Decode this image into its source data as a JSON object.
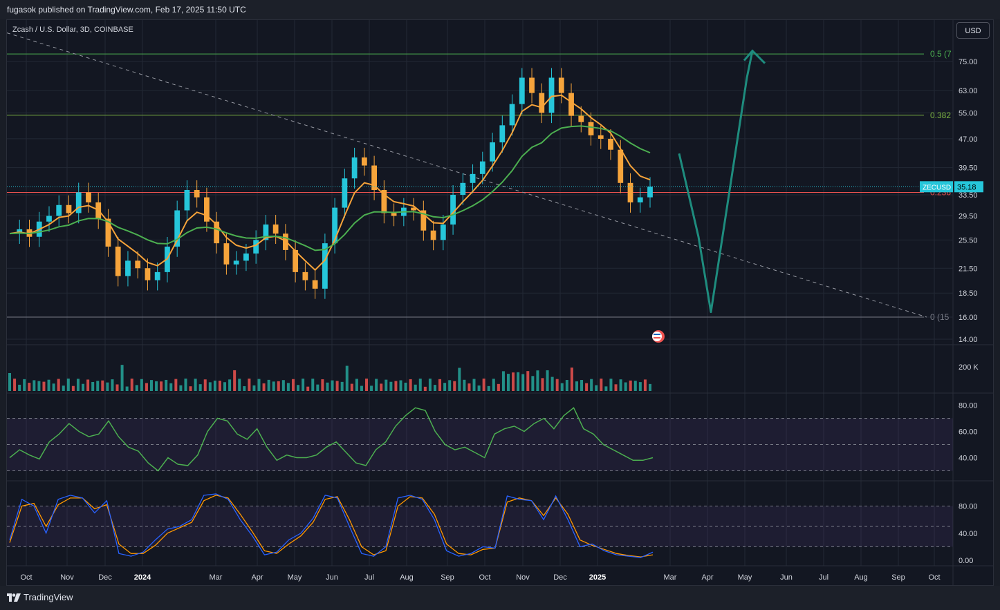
{
  "header": {
    "published": "fugasok published on TradingView.com, Feb 17, 2025 11:50 UTC"
  },
  "symbol_title": "Zcash / U.S. Dollar, 3D, COINBASE",
  "currency_button": "USD",
  "price_tag": {
    "symbol": "ZECUSD",
    "value": "35.18"
  },
  "footer": {
    "brand": "TradingView"
  },
  "colors": {
    "up": "#26c6da",
    "down": "#f6a43b",
    "ema_fast": "#f7a33a",
    "ema_slow": "#4caf50",
    "fib": "#7cb342",
    "arrow": "#1e8c7e",
    "volume_up": "#26a69a",
    "volume_down": "#ef5350"
  },
  "chart_data": [
    {
      "type": "candlestick",
      "title": "Zcash / U.S. Dollar, 3D, COINBASE",
      "y_scale": "log",
      "y_ticks": [
        "75.00",
        "63.00",
        "55.00",
        "47.00",
        "39.50",
        "33.50",
        "29.50",
        "25.50",
        "21.50",
        "18.50",
        "16.00",
        "14.00"
      ],
      "x_ticks": [
        "Oct",
        "Nov",
        "Dec",
        "2024",
        "Mar",
        "Apr",
        "May",
        "Jun",
        "Jul",
        "Aug",
        "Sep",
        "Oct",
        "Nov",
        "Dec",
        "2025",
        "Mar",
        "Apr",
        "May",
        "Jun",
        "Jul",
        "Aug",
        "Sep",
        "Oct"
      ],
      "fib_levels": [
        {
          "label": "0.5 (7",
          "value": 78.5
        },
        {
          "label": "0.382",
          "value": 54.2
        },
        {
          "label": "0.236",
          "value": 34.0
        },
        {
          "label": "0 (15",
          "value": 16.0
        }
      ],
      "last_price": 35.18,
      "close_path": [
        26.5,
        27.2,
        26.0,
        28.5,
        29.5,
        31.5,
        30.0,
        34.0,
        32.0,
        29.0,
        24.5,
        20.5,
        22.5,
        21.5,
        20.0,
        21.0,
        24.5,
        30.5,
        34.5,
        33.0,
        28.5,
        25.0,
        22.0,
        22.5,
        23.5,
        25.5,
        28.0,
        26.5,
        24.0,
        21.0,
        20.0,
        19.0,
        25.0,
        31.0,
        37.0,
        42.0,
        40.0,
        34.5,
        30.0,
        29.5,
        31.0,
        30.5,
        27.0,
        25.5,
        28.0,
        33.5,
        36.0,
        38.0,
        41.0,
        46.0,
        51.0,
        58.0,
        68.0,
        62.0,
        55.0,
        68.0,
        62.0,
        54.0,
        52.0,
        48.0,
        47.0,
        44.0,
        36.0,
        32.0,
        33.0,
        35.18
      ],
      "forecast_path": [
        {
          "date": "2025-02-20",
          "price": 43.0
        },
        {
          "date": "2025-03-20",
          "price": 26.0
        },
        {
          "date": "2025-03-31",
          "price": 16.5
        },
        {
          "date": "2025-05-10",
          "price": 68.0
        },
        {
          "date": "2025-05-12",
          "price": 80.0
        }
      ]
    },
    {
      "type": "bar",
      "title": "Volume",
      "y_ticks": [
        "200 K"
      ]
    },
    {
      "type": "line",
      "title": "RSI",
      "y_ticks": [
        "80.00",
        "60.00",
        "40.00"
      ],
      "bands": [
        70,
        50,
        30
      ],
      "values": [
        40,
        46,
        42,
        39,
        52,
        58,
        66,
        60,
        56,
        58,
        68,
        56,
        48,
        45,
        36,
        30,
        40,
        35,
        34,
        42,
        60,
        70,
        68,
        58,
        54,
        62,
        48,
        38,
        42,
        40,
        40,
        42,
        48,
        52,
        44,
        36,
        34,
        46,
        52,
        64,
        72,
        78,
        76,
        60,
        50,
        46,
        48,
        44,
        40,
        58,
        62,
        64,
        60,
        66,
        70,
        62,
        72,
        78,
        62,
        58,
        50,
        46,
        42,
        38,
        38,
        40
      ]
    },
    {
      "type": "line",
      "title": "Stochastic RSI",
      "y_ticks": [
        "80.00",
        "40.00",
        "0.00"
      ],
      "bands": [
        80,
        50,
        20
      ],
      "k_values": [
        30,
        90,
        80,
        40,
        90,
        96,
        92,
        70,
        88,
        10,
        6,
        12,
        30,
        46,
        50,
        60,
        96,
        98,
        90,
        60,
        36,
        8,
        12,
        30,
        40,
        62,
        96,
        92,
        50,
        10,
        6,
        20,
        92,
        96,
        90,
        60,
        14,
        6,
        10,
        20,
        18,
        95,
        90,
        88,
        60,
        95,
        60,
        20,
        24,
        14,
        8,
        6,
        4,
        12
      ],
      "d_values": [
        26,
        80,
        84,
        50,
        82,
        92,
        92,
        76,
        82,
        24,
        10,
        10,
        22,
        40,
        48,
        56,
        88,
        96,
        92,
        68,
        42,
        14,
        10,
        24,
        36,
        56,
        90,
        94,
        60,
        20,
        8,
        14,
        80,
        94,
        92,
        68,
        24,
        10,
        8,
        16,
        18,
        86,
        92,
        88,
        66,
        92,
        68,
        30,
        22,
        16,
        10,
        7,
        5,
        8
      ]
    }
  ]
}
